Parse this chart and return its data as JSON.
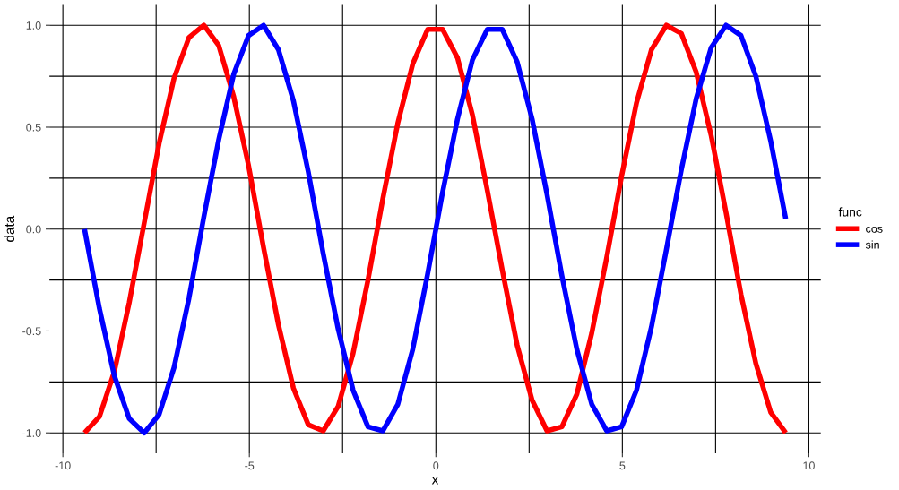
{
  "chart_data": {
    "type": "line",
    "xlabel": "x",
    "ylabel": "data",
    "legend_title": "func",
    "legend": "right",
    "grid": true,
    "x": [
      -9.42,
      -9.02,
      -8.62,
      -8.22,
      -7.82,
      -7.42,
      -7.02,
      -6.62,
      -6.22,
      -5.82,
      -5.42,
      -5.02,
      -4.62,
      -4.22,
      -3.82,
      -3.42,
      -3.02,
      -2.62,
      -2.22,
      -1.82,
      -1.42,
      -1.02,
      -0.62,
      -0.22,
      0.18,
      0.58,
      0.98,
      1.38,
      1.78,
      2.18,
      2.58,
      2.98,
      3.38,
      3.78,
      4.18,
      4.58,
      4.98,
      5.38,
      5.78,
      6.18,
      6.58,
      6.98,
      7.38,
      7.78,
      8.18,
      8.58,
      8.98,
      9.38
    ],
    "series": [
      {
        "name": "cos",
        "color": "#ff0000",
        "values": [
          -1,
          -0.92,
          -0.7,
          -0.36,
          0.03,
          0.42,
          0.74,
          0.94,
          1.0,
          0.9,
          0.65,
          0.31,
          -0.09,
          -0.47,
          -0.78,
          -0.96,
          -0.99,
          -0.87,
          -0.61,
          -0.25,
          0.15,
          0.52,
          0.81,
          0.98,
          0.98,
          0.84,
          0.56,
          0.19,
          -0.2,
          -0.57,
          -0.84,
          -0.99,
          -0.97,
          -0.81,
          -0.51,
          -0.14,
          0.26,
          0.62,
          0.88,
          1.0,
          0.96,
          0.77,
          0.46,
          0.08,
          -0.32,
          -0.66,
          -0.9,
          -1.0
        ]
      },
      {
        "name": "sin",
        "color": "#0000ff",
        "values": [
          0,
          -0.39,
          -0.72,
          -0.93,
          -1.0,
          -0.91,
          -0.68,
          -0.34,
          0.06,
          0.44,
          0.76,
          0.95,
          1.0,
          0.88,
          0.63,
          0.28,
          -0.12,
          -0.49,
          -0.79,
          -0.97,
          -0.99,
          -0.86,
          -0.59,
          -0.22,
          0.18,
          0.54,
          0.83,
          0.98,
          0.98,
          0.82,
          0.54,
          0.17,
          -0.23,
          -0.59,
          -0.86,
          -0.99,
          -0.97,
          -0.79,
          -0.48,
          -0.1,
          0.29,
          0.64,
          0.89,
          1.0,
          0.95,
          0.75,
          0.43,
          0.05
        ]
      }
    ],
    "xlim": [
      -10.36,
      10.32
    ],
    "ylim": [
      -1.1,
      1.1
    ],
    "xticks": [
      -10,
      -5,
      0,
      5,
      10
    ],
    "yticks": [
      {
        "value": -1,
        "label": "-1.0"
      },
      {
        "value": -0.5,
        "label": "-0.5"
      },
      {
        "value": 0,
        "label": "0.0"
      },
      {
        "value": 0.5,
        "label": "0.5"
      },
      {
        "value": 1,
        "label": "1.0"
      }
    ]
  }
}
